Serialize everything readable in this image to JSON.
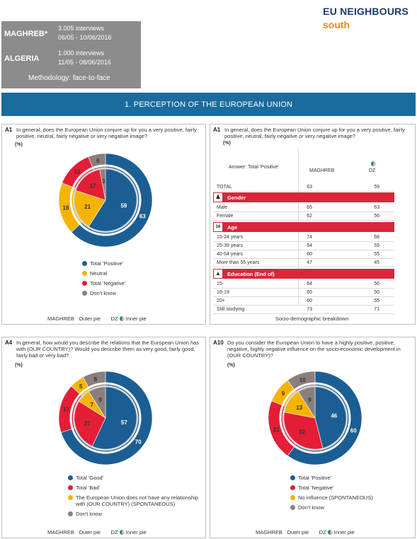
{
  "header": {
    "regions": [
      {
        "name": "MAGHREB*",
        "interviews": "3.005 interviews",
        "dates": "06/05 - 10/06/2016"
      },
      {
        "name": "ALGERIA",
        "interviews": "1.000 interviews",
        "dates": "11/05 - 08/06/2016"
      }
    ],
    "methodology": "Methodology: face-to-face",
    "logo_line1": "EU NEIGHBOURS",
    "logo_line2": "south"
  },
  "section_title": "1. PERCEPTION OF THE EUROPEAN UNION",
  "colors": {
    "blue": "#1b5e93",
    "yellow": "#f5b400",
    "red": "#e31e36",
    "gray": "#8a7f7c"
  },
  "panels": {
    "a1_pie": {
      "code": "A1",
      "question": "In general, does the European Union conjure up for you a very positive, fairly positive, neutral, fairly negative or very negative image?",
      "unit": "(%)",
      "legend": [
        "Total 'Positive'",
        "Neutral",
        "Total 'Negative'",
        "Don't know"
      ],
      "footer_left": "MAGHREB",
      "footer_outer": "Outer pie",
      "footer_dz": "DZ",
      "footer_inner": "Inner pie"
    },
    "a1_table": {
      "code": "A1",
      "question": "In general, does the European Union conjure up for you a very positive, fairly positive, neutral, fairly negative or very negative image?",
      "unit": "(%)",
      "answer_label": "Answer: Total 'Positive'",
      "col1": "MAGHREB",
      "col2": "DZ",
      "footer": "Socio-demographic breakdown",
      "total": {
        "label": "TOTAL",
        "v1": "63",
        "v2": "59"
      },
      "cat_gender": "Gender",
      "gender": [
        {
          "label": "Male",
          "v1": "65",
          "v2": "63"
        },
        {
          "label": "Female",
          "v1": "62",
          "v2": "56"
        }
      ],
      "cat_age": "Age",
      "age_icon": "16",
      "age": [
        {
          "label": "15-24 years",
          "v1": "74",
          "v2": "68"
        },
        {
          "label": "25-39 years",
          "v1": "64",
          "v2": "59"
        },
        {
          "label": "40-54 years",
          "v1": "60",
          "v2": "55"
        },
        {
          "label": "More than 55 years",
          "v1": "47",
          "v2": "45"
        }
      ],
      "cat_edu": "Education (End of)",
      "edu": [
        {
          "label": "15-",
          "v1": "64",
          "v2": "56"
        },
        {
          "label": "16-19",
          "v1": "65",
          "v2": "50"
        },
        {
          "label": "20+",
          "v1": "60",
          "v2": "55"
        },
        {
          "label": "Still studying",
          "v1": "73",
          "v2": "71"
        }
      ]
    },
    "a4_pie": {
      "code": "A4",
      "question": "In general, how would you describe the relations that the European Union has with (OUR COUNTRY)? Would you describe them as very good, fairly good, fairly bad or very bad?",
      "unit": "(%)",
      "legend": [
        "Total 'Good'",
        "Total 'Bad'",
        "The European Union does not have any relationship with (OUR COUNTRY) (SPONTANEOUS)",
        "Don't know"
      ],
      "footer_left": "MAGHREB",
      "footer_outer": "Outer pie",
      "footer_dz": "DZ",
      "footer_inner": "Inner pie"
    },
    "a10_pie": {
      "code": "A10",
      "question": "Do you consider the European Union to have a highly positive, positive, negative, highly negative influence on the socio-economic development in (OUR COUNTRY)?",
      "unit": "(%)",
      "legend": [
        "Total 'Positive'",
        "Total 'Negative'",
        "No influence (SPONTANEOUS)",
        "Don't know"
      ],
      "footer_left": "MAGHREB",
      "footer_outer": "Outer pie",
      "footer_dz": "DZ",
      "footer_inner": "Inner pie"
    }
  },
  "chart_data": [
    {
      "type": "pie",
      "id": "a1",
      "categories": [
        "Total 'Positive'",
        "Neutral",
        "Total 'Negative'",
        "Don't know"
      ],
      "series": [
        {
          "name": "MAGHREB",
          "values": [
            63,
            18,
            13,
            6
          ]
        },
        {
          "name": "DZ",
          "values": [
            59,
            21,
            17,
            3
          ]
        }
      ]
    },
    {
      "type": "pie",
      "id": "a4",
      "categories": [
        "Total 'Good'",
        "Total 'Bad'",
        "The European Union does not have any relationship with (OUR COUNTRY) (SPONTANEOUS)",
        "Don't know"
      ],
      "series": [
        {
          "name": "MAGHREB",
          "values": [
            70,
            17,
            5,
            8
          ]
        },
        {
          "name": "DZ",
          "values": [
            57,
            27,
            7,
            9
          ]
        }
      ]
    },
    {
      "type": "pie",
      "id": "a10",
      "categories": [
        "Total 'Positive'",
        "Total 'Negative'",
        "No influence (SPONTANEOUS)",
        "Don't know"
      ],
      "series": [
        {
          "name": "MAGHREB",
          "values": [
            60,
            21,
            9,
            10
          ]
        },
        {
          "name": "DZ",
          "values": [
            46,
            32,
            13,
            9
          ]
        }
      ]
    }
  ]
}
